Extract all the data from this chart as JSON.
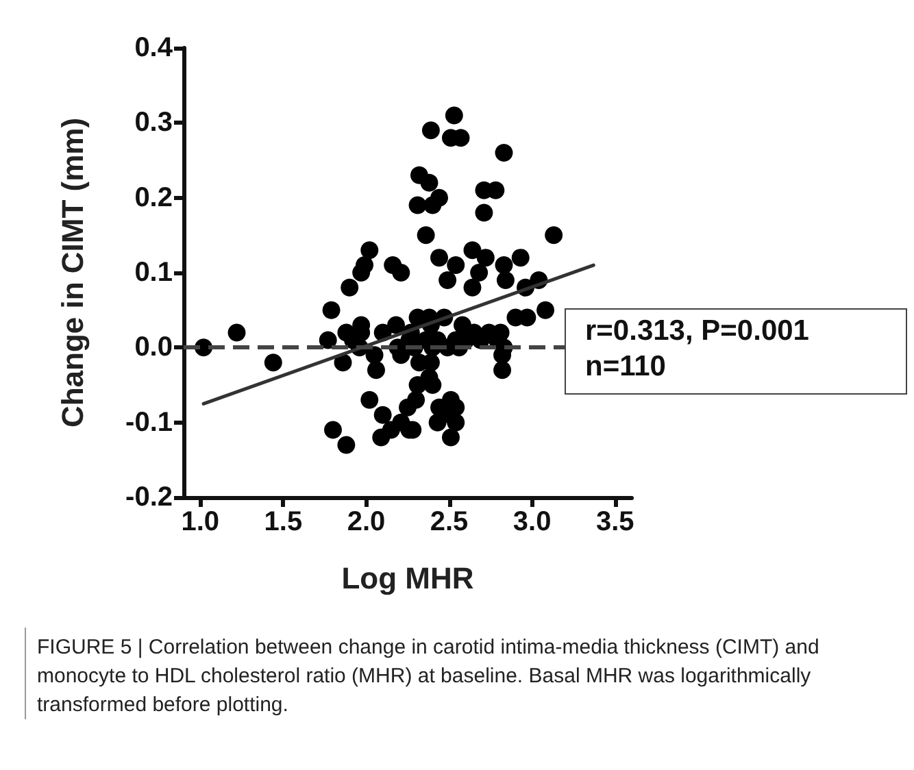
{
  "chart_data": {
    "type": "scatter",
    "xlabel": "Log MHR",
    "ylabel": "Change in CIMT (mm)",
    "xlim": [
      0.9,
      3.6
    ],
    "xticks": [
      {
        "value": 1.0,
        "label": "1.0"
      },
      1.5,
      {
        "value": 2.0,
        "label": "2.0"
      },
      2.5,
      {
        "value": 3.0,
        "label": "3.0"
      },
      3.5
    ],
    "ylim": [
      -0.2,
      0.4
    ],
    "yticks": [
      -0.2,
      -0.1,
      {
        "value": 0.0,
        "label": "0.0"
      },
      0.1,
      0.2,
      0.3,
      0.4
    ],
    "grid": false,
    "marker": "circle",
    "series": [
      {
        "color": "#000000",
        "x": [
          1.02,
          1.22,
          1.44,
          1.79,
          1.77,
          1.8,
          1.88,
          1.86,
          1.9,
          1.88,
          1.92,
          1.97,
          1.97,
          1.96,
          1.97,
          1.99,
          2.02,
          2.02,
          2.05,
          2.06,
          2.1,
          2.1,
          2.09,
          2.15,
          2.16,
          2.21,
          2.18,
          2.19,
          2.21,
          2.21,
          2.25,
          2.26,
          2.31,
          2.27,
          2.26,
          2.29,
          2.32,
          2.31,
          2.28,
          2.32,
          2.38,
          2.31,
          2.4,
          2.44,
          2.36,
          2.39,
          2.53,
          2.51,
          2.57,
          2.83,
          2.71,
          2.78,
          2.71,
          3.13,
          2.44,
          2.54,
          2.49,
          2.64,
          2.72,
          2.68,
          2.64,
          2.83,
          2.93,
          2.84,
          2.96,
          3.04,
          2.38,
          2.39,
          2.47,
          2.58,
          2.65,
          2.74,
          2.81,
          2.9,
          2.97,
          3.08,
          2.36,
          2.43,
          2.54,
          2.6,
          2.69,
          2.4,
          2.49,
          2.56,
          2.79,
          2.83,
          2.82,
          2.82,
          2.39,
          2.38,
          2.4,
          2.44,
          2.51,
          2.54,
          2.43,
          2.51,
          2.54,
          2.51,
          2.3
        ],
        "values": [
          0.0,
          0.02,
          -0.02,
          0.05,
          0.01,
          -0.11,
          -0.13,
          -0.02,
          0.08,
          0.02,
          0.01,
          0.03,
          0.02,
          0.0,
          0.1,
          0.11,
          0.13,
          -0.07,
          -0.01,
          -0.03,
          0.02,
          -0.09,
          -0.12,
          -0.11,
          0.11,
          0.1,
          0.03,
          0.0,
          -0.01,
          -0.1,
          -0.08,
          -0.11,
          0.04,
          0.02,
          0.01,
          0.0,
          -0.02,
          -0.05,
          -0.11,
          0.23,
          0.22,
          0.19,
          0.19,
          0.2,
          0.15,
          0.29,
          0.31,
          0.28,
          0.28,
          0.26,
          0.21,
          0.21,
          0.18,
          0.15,
          0.12,
          0.11,
          0.09,
          0.13,
          0.12,
          0.1,
          0.08,
          0.11,
          0.12,
          0.09,
          0.08,
          0.09,
          0.04,
          0.03,
          0.04,
          0.03,
          0.02,
          0.02,
          0.02,
          0.04,
          0.04,
          0.05,
          0.01,
          0.01,
          0.01,
          0.01,
          0.01,
          0.0,
          0.0,
          0.0,
          0.01,
          0.0,
          -0.01,
          -0.03,
          -0.02,
          -0.04,
          -0.05,
          -0.08,
          -0.07,
          -0.08,
          -0.1,
          -0.09,
          -0.1,
          -0.12,
          -0.07
        ]
      },
      {
        "type": "line",
        "color": "#333333",
        "marker": "none",
        "line_style": "solid",
        "x": [
          1.02,
          3.37
        ],
        "values": [
          -0.075,
          0.11
        ]
      }
    ],
    "ref_lines": [
      {
        "axis": "y",
        "value": 0,
        "color": "#444444",
        "line_style": "dashed"
      }
    ],
    "annotations": [
      "r=0.313, P=0.001",
      "n=110",
      "FIGURE 5 | Correlation between change in carotid intima-media thickness (CIMT) and monocyte to HDL cholesterol ratio (MHR) at baseline. Basal MHR was logarithmically transformed before plotting."
    ]
  }
}
